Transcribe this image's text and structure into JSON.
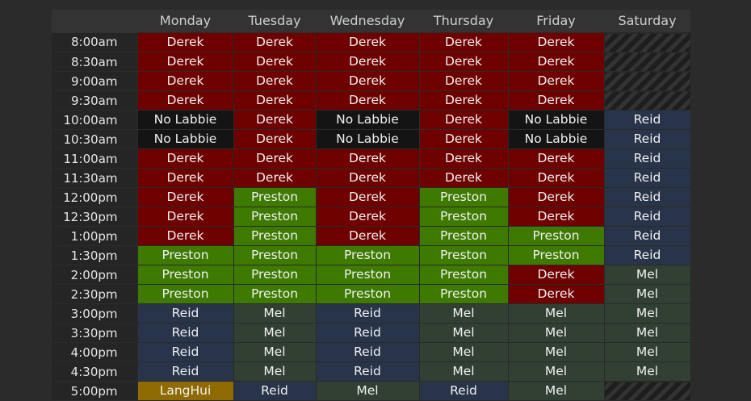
{
  "days": [
    "Monday",
    "Tuesday",
    "Wednesday",
    "Thursday",
    "Friday",
    "Saturday"
  ],
  "rows": [
    {
      "time": "8:00am",
      "cells": [
        "Derek",
        "Derek",
        "Derek",
        "Derek",
        "Derek",
        ""
      ]
    },
    {
      "time": "8:30am",
      "cells": [
        "Derek",
        "Derek",
        "Derek",
        "Derek",
        "Derek",
        ""
      ]
    },
    {
      "time": "9:00am",
      "cells": [
        "Derek",
        "Derek",
        "Derek",
        "Derek",
        "Derek",
        ""
      ]
    },
    {
      "time": "9:30am",
      "cells": [
        "Derek",
        "Derek",
        "Derek",
        "Derek",
        "Derek",
        ""
      ]
    },
    {
      "time": "10:00am",
      "cells": [
        "No Labbie",
        "Derek",
        "No Labbie",
        "Derek",
        "No Labbie",
        "Reid"
      ]
    },
    {
      "time": "10:30am",
      "cells": [
        "No Labbie",
        "Derek",
        "No Labbie",
        "Derek",
        "No Labbie",
        "Reid"
      ]
    },
    {
      "time": "11:00am",
      "cells": [
        "Derek",
        "Derek",
        "Derek",
        "Derek",
        "Derek",
        "Reid"
      ]
    },
    {
      "time": "11:30am",
      "cells": [
        "Derek",
        "Derek",
        "Derek",
        "Derek",
        "Derek",
        "Reid"
      ]
    },
    {
      "time": "12:00pm",
      "cells": [
        "Derek",
        "Preston",
        "Derek",
        "Preston",
        "Derek",
        "Reid"
      ]
    },
    {
      "time": "12:30pm",
      "cells": [
        "Derek",
        "Preston",
        "Derek",
        "Preston",
        "Derek",
        "Reid"
      ]
    },
    {
      "time": "1:00pm",
      "cells": [
        "Derek",
        "Preston",
        "Derek",
        "Preston",
        "Preston",
        "Reid"
      ]
    },
    {
      "time": "1:30pm",
      "cells": [
        "Preston",
        "Preston",
        "Preston",
        "Preston",
        "Preston",
        "Reid"
      ]
    },
    {
      "time": "2:00pm",
      "cells": [
        "Preston",
        "Preston",
        "Preston",
        "Preston",
        "Derek",
        "Mel"
      ]
    },
    {
      "time": "2:30pm",
      "cells": [
        "Preston",
        "Preston",
        "Preston",
        "Preston",
        "Derek",
        "Mel"
      ]
    },
    {
      "time": "3:00pm",
      "cells": [
        "Reid",
        "Mel",
        "Reid",
        "Mel",
        "Mel",
        "Mel"
      ]
    },
    {
      "time": "3:30pm",
      "cells": [
        "Reid",
        "Mel",
        "Reid",
        "Mel",
        "Mel",
        "Mel"
      ]
    },
    {
      "time": "4:00pm",
      "cells": [
        "Reid",
        "Mel",
        "Reid",
        "Mel",
        "Mel",
        "Mel"
      ]
    },
    {
      "time": "4:30pm",
      "cells": [
        "Reid",
        "Mel",
        "Reid",
        "Mel",
        "Mel",
        "Mel"
      ]
    },
    {
      "time": "5:00pm",
      "cells": [
        "LangHui",
        "Reid",
        "Mel",
        "Reid",
        "Mel",
        ""
      ]
    }
  ],
  "colors": {
    "Derek": "#6e0000",
    "No Labbie": "#141414",
    "Preston": "#3e7a00",
    "Reid": "#28344a",
    "Mel": "#314033",
    "LangHui": "#8e6a00"
  }
}
